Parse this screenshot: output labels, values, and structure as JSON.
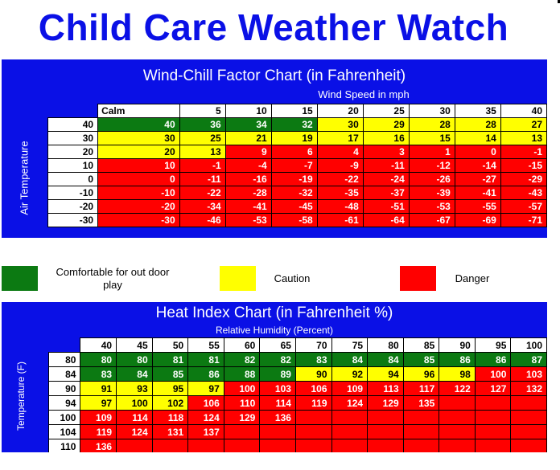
{
  "title": "Child Care Weather Watch",
  "windchill": {
    "title": "Wind-Chill Factor Chart (in Fahrenheit)",
    "subtitle": "Wind Speed in mph",
    "side_label": "Air Temperature",
    "columns": [
      "Calm",
      "5",
      "10",
      "15",
      "20",
      "25",
      "30",
      "35",
      "40"
    ],
    "rows": [
      {
        "temp": "40",
        "cells": [
          [
            "40",
            "g"
          ],
          [
            "36",
            "g"
          ],
          [
            "34",
            "g"
          ],
          [
            "32",
            "g"
          ],
          [
            "30",
            "y"
          ],
          [
            "29",
            "y"
          ],
          [
            "28",
            "y"
          ],
          [
            "28",
            "y"
          ],
          [
            "27",
            "y"
          ]
        ]
      },
      {
        "temp": "30",
        "cells": [
          [
            "30",
            "y"
          ],
          [
            "25",
            "y"
          ],
          [
            "21",
            "y"
          ],
          [
            "19",
            "y"
          ],
          [
            "17",
            "y"
          ],
          [
            "16",
            "y"
          ],
          [
            "15",
            "y"
          ],
          [
            "14",
            "y"
          ],
          [
            "13",
            "y"
          ]
        ]
      },
      {
        "temp": "20",
        "cells": [
          [
            "20",
            "y"
          ],
          [
            "13",
            "y"
          ],
          [
            "9",
            "r"
          ],
          [
            "6",
            "r"
          ],
          [
            "4",
            "r"
          ],
          [
            "3",
            "r"
          ],
          [
            "1",
            "r"
          ],
          [
            "0",
            "r"
          ],
          [
            "-1",
            "r"
          ]
        ]
      },
      {
        "temp": "10",
        "cells": [
          [
            "10",
            "r"
          ],
          [
            "-1",
            "r"
          ],
          [
            "-4",
            "r"
          ],
          [
            "-7",
            "r"
          ],
          [
            "-9",
            "r"
          ],
          [
            "-11",
            "r"
          ],
          [
            "-12",
            "r"
          ],
          [
            "-14",
            "r"
          ],
          [
            "-15",
            "r"
          ]
        ]
      },
      {
        "temp": "0",
        "cells": [
          [
            "0",
            "r"
          ],
          [
            "-11",
            "r"
          ],
          [
            "-16",
            "r"
          ],
          [
            "-19",
            "r"
          ],
          [
            "-22",
            "r"
          ],
          [
            "-24",
            "r"
          ],
          [
            "-26",
            "r"
          ],
          [
            "-27",
            "r"
          ],
          [
            "-29",
            "r"
          ]
        ]
      },
      {
        "temp": "-10",
        "cells": [
          [
            "-10",
            "r"
          ],
          [
            "-22",
            "r"
          ],
          [
            "-28",
            "r"
          ],
          [
            "-32",
            "r"
          ],
          [
            "-35",
            "r"
          ],
          [
            "-37",
            "r"
          ],
          [
            "-39",
            "r"
          ],
          [
            "-41",
            "r"
          ],
          [
            "-43",
            "r"
          ]
        ]
      },
      {
        "temp": "-20",
        "cells": [
          [
            "-20",
            "r"
          ],
          [
            "-34",
            "r"
          ],
          [
            "-41",
            "r"
          ],
          [
            "-45",
            "r"
          ],
          [
            "-48",
            "r"
          ],
          [
            "-51",
            "r"
          ],
          [
            "-53",
            "r"
          ],
          [
            "-55",
            "r"
          ],
          [
            "-57",
            "r"
          ]
        ]
      },
      {
        "temp": "-30",
        "cells": [
          [
            "-30",
            "r"
          ],
          [
            "-46",
            "r"
          ],
          [
            "-53",
            "r"
          ],
          [
            "-58",
            "r"
          ],
          [
            "-61",
            "r"
          ],
          [
            "-64",
            "r"
          ],
          [
            "-67",
            "r"
          ],
          [
            "-69",
            "r"
          ],
          [
            "-71",
            "r"
          ]
        ]
      }
    ]
  },
  "legend": {
    "items": [
      {
        "label": "Comfortable for out door play",
        "color": "#0c7a12"
      },
      {
        "label": "Caution",
        "color": "#ffff00"
      },
      {
        "label": "Danger",
        "color": "#ff0000"
      }
    ]
  },
  "heatindex": {
    "title": "Heat Index Chart (in Fahrenheit %)",
    "subtitle": "Relative Humidity (Percent)",
    "side_label": "Temperature (F)",
    "columns": [
      "40",
      "45",
      "50",
      "55",
      "60",
      "65",
      "70",
      "75",
      "80",
      "85",
      "90",
      "95",
      "100"
    ],
    "rows": [
      {
        "temp": "80",
        "cells": [
          [
            "80",
            "g"
          ],
          [
            "80",
            "g"
          ],
          [
            "81",
            "g"
          ],
          [
            "81",
            "g"
          ],
          [
            "82",
            "g"
          ],
          [
            "82",
            "g"
          ],
          [
            "83",
            "g"
          ],
          [
            "84",
            "g"
          ],
          [
            "84",
            "g"
          ],
          [
            "85",
            "g"
          ],
          [
            "86",
            "g"
          ],
          [
            "86",
            "g"
          ],
          [
            "87",
            "g"
          ]
        ]
      },
      {
        "temp": "84",
        "cells": [
          [
            "83",
            "g"
          ],
          [
            "84",
            "g"
          ],
          [
            "85",
            "g"
          ],
          [
            "86",
            "g"
          ],
          [
            "88",
            "g"
          ],
          [
            "89",
            "g"
          ],
          [
            "90",
            "y"
          ],
          [
            "92",
            "y"
          ],
          [
            "94",
            "y"
          ],
          [
            "96",
            "y"
          ],
          [
            "98",
            "y"
          ],
          [
            "100",
            "r"
          ],
          [
            "103",
            "r"
          ]
        ]
      },
      {
        "temp": "90",
        "cells": [
          [
            "91",
            "y"
          ],
          [
            "93",
            "y"
          ],
          [
            "95",
            "y"
          ],
          [
            "97",
            "y"
          ],
          [
            "100",
            "r"
          ],
          [
            "103",
            "r"
          ],
          [
            "106",
            "r"
          ],
          [
            "109",
            "r"
          ],
          [
            "113",
            "r"
          ],
          [
            "117",
            "r"
          ],
          [
            "122",
            "r"
          ],
          [
            "127",
            "r"
          ],
          [
            "132",
            "r"
          ]
        ]
      },
      {
        "temp": "94",
        "cells": [
          [
            "97",
            "y"
          ],
          [
            "100",
            "y"
          ],
          [
            "102",
            "y"
          ],
          [
            "106",
            "r"
          ],
          [
            "110",
            "r"
          ],
          [
            "114",
            "r"
          ],
          [
            "119",
            "r"
          ],
          [
            "124",
            "r"
          ],
          [
            "129",
            "r"
          ],
          [
            "135",
            "r"
          ],
          [
            "",
            "r"
          ],
          [
            "",
            "r"
          ],
          [
            "",
            "r"
          ]
        ]
      },
      {
        "temp": "100",
        "cells": [
          [
            "109",
            "r"
          ],
          [
            "114",
            "r"
          ],
          [
            "118",
            "r"
          ],
          [
            "124",
            "r"
          ],
          [
            "129",
            "r"
          ],
          [
            "136",
            "r"
          ],
          [
            "",
            "r"
          ],
          [
            "",
            "r"
          ],
          [
            "",
            "r"
          ],
          [
            "",
            "r"
          ],
          [
            "",
            "r"
          ],
          [
            "",
            "r"
          ],
          [
            "",
            "r"
          ]
        ]
      },
      {
        "temp": "104",
        "cells": [
          [
            "119",
            "r"
          ],
          [
            "124",
            "r"
          ],
          [
            "131",
            "r"
          ],
          [
            "137",
            "r"
          ],
          [
            "",
            "r"
          ],
          [
            "",
            "r"
          ],
          [
            "",
            "r"
          ],
          [
            "",
            "r"
          ],
          [
            "",
            "r"
          ],
          [
            "",
            "r"
          ],
          [
            "",
            "r"
          ],
          [
            "",
            "r"
          ],
          [
            "",
            "r"
          ]
        ]
      },
      {
        "temp": "110",
        "cells": [
          [
            "136",
            "r"
          ],
          [
            "",
            "r"
          ],
          [
            "",
            "r"
          ],
          [
            "",
            "r"
          ],
          [
            "",
            "r"
          ],
          [
            "",
            "r"
          ],
          [
            "",
            "r"
          ],
          [
            "",
            "r"
          ],
          [
            "",
            "r"
          ],
          [
            "",
            "r"
          ],
          [
            "",
            "r"
          ],
          [
            "",
            "r"
          ],
          [
            "",
            "r"
          ]
        ]
      }
    ]
  }
}
